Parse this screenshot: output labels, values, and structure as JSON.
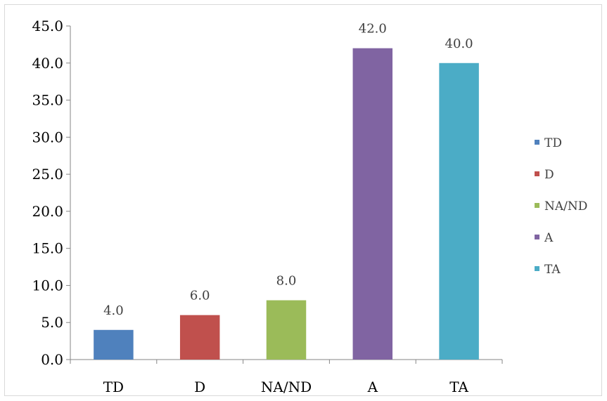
{
  "chart_data": {
    "type": "bar",
    "categories": [
      "TD",
      "D",
      "NA/ND",
      "A",
      "TA"
    ],
    "values": [
      4.0,
      6.0,
      8.0,
      42.0,
      40.0
    ],
    "data_labels": [
      "4.0",
      "6.0",
      "8.0",
      "42.0",
      "40.0"
    ],
    "colors": [
      "#4f81bd",
      "#c0504d",
      "#9bbb59",
      "#8064a2",
      "#4bacc6"
    ],
    "yticks": [
      "0.0",
      "5.0",
      "10.0",
      "15.0",
      "20.0",
      "25.0",
      "30.0",
      "35.0",
      "40.0",
      "45.0"
    ],
    "ylim": [
      0,
      45
    ],
    "grid": false,
    "legend": {
      "position": "right",
      "entries": [
        "TD",
        "D",
        "NA/ND",
        "A",
        "TA"
      ]
    }
  }
}
